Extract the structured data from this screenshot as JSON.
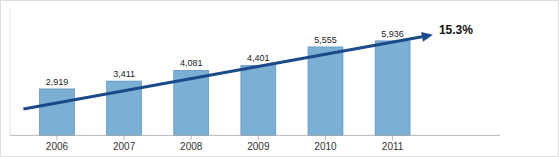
{
  "chart_data": {
    "type": "bar",
    "categories": [
      "2006",
      "2007",
      "2008",
      "2009",
      "2010",
      "2011"
    ],
    "values": [
      2919,
      3411,
      4081,
      4401,
      5555,
      5936
    ],
    "value_labels": [
      "2,919",
      "3,411",
      "4,081",
      "4,401",
      "5,555",
      "5,936"
    ],
    "data_labels": true,
    "color": "#7bafd4",
    "annotation": "15.3%",
    "ylim": [
      -100,
      8000
    ],
    "yticks": [],
    "tick_labels": "x",
    "grid": false
  }
}
